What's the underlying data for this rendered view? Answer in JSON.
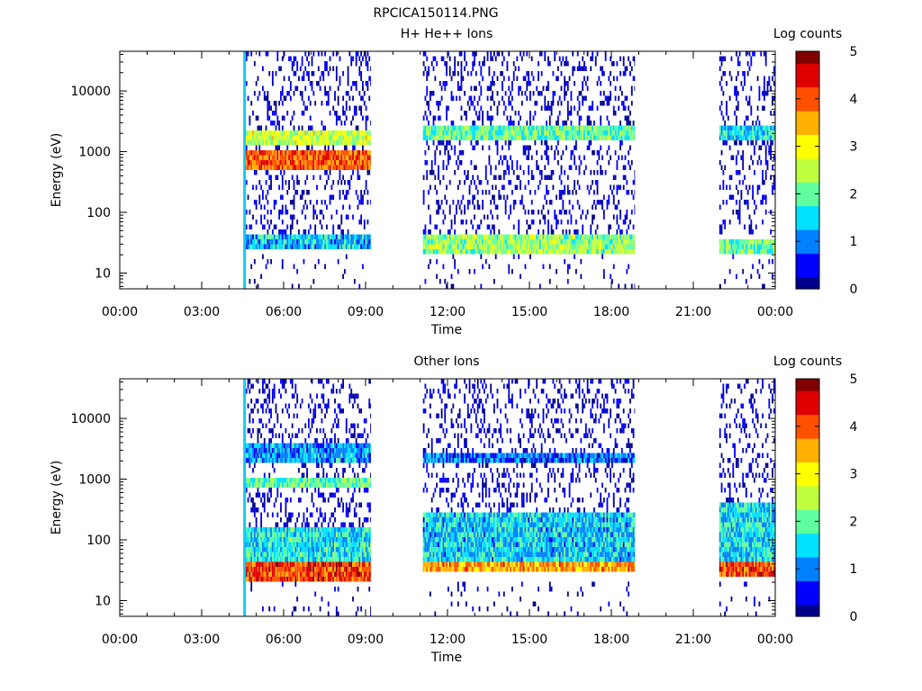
{
  "figure_title": "RPCICA150114.PNG",
  "colors": {
    "colormap": [
      "#00008c",
      "#0000ff",
      "#0080ff",
      "#00e0ff",
      "#60ff9f",
      "#c0ff40",
      "#ffff00",
      "#ffb000",
      "#ff5000",
      "#e00000",
      "#800000"
    ]
  },
  "chart_data": [
    {
      "type": "heatmap",
      "title": "H+ He++ Ions",
      "xlabel": "Time",
      "ylabel": "Energy (eV)",
      "y_scale": "log",
      "ylim": [
        5.5,
        45000
      ],
      "xlim_hours": [
        0,
        24
      ],
      "x_ticks": [
        {
          "hour": 0,
          "label": "00:00"
        },
        {
          "hour": 3,
          "label": "03:00"
        },
        {
          "hour": 6,
          "label": "06:00"
        },
        {
          "hour": 9,
          "label": "09:00"
        },
        {
          "hour": 12,
          "label": "12:00"
        },
        {
          "hour": 15,
          "label": "15:00"
        },
        {
          "hour": 18,
          "label": "18:00"
        },
        {
          "hour": 21,
          "label": "21:00"
        },
        {
          "hour": 24,
          "label": "00:00"
        }
      ],
      "y_ticks": [
        {
          "value": 10,
          "label": "10"
        },
        {
          "value": 100,
          "label": "100"
        },
        {
          "value": 1000,
          "label": "1000"
        },
        {
          "value": 10000,
          "label": "10000"
        }
      ],
      "colorbar": {
        "label": "Log counts",
        "range": [
          0,
          5
        ],
        "ticks": [
          "0",
          "1",
          "2",
          "3",
          "4",
          "5"
        ]
      },
      "data_intervals_hours": [
        [
          4.55,
          9.2
        ],
        [
          11.1,
          18.85
        ],
        [
          21.95,
          24.0
        ]
      ],
      "spike_hour": 4.57,
      "bands": [
        {
          "interval": 0,
          "energy_low": 500,
          "energy_high": 1100,
          "log_counts": 4.0
        },
        {
          "interval": 0,
          "energy_low": 1200,
          "energy_high": 2300,
          "log_counts": 2.6
        },
        {
          "interval": 0,
          "energy_low": 25,
          "energy_high": 40,
          "log_counts": 1.3
        },
        {
          "interval": 1,
          "energy_low": 1600,
          "energy_high": 2800,
          "log_counts": 2.0
        },
        {
          "interval": 1,
          "energy_low": 22,
          "energy_high": 40,
          "log_counts": 2.3
        },
        {
          "interval": 2,
          "energy_low": 1600,
          "energy_high": 2600,
          "log_counts": 1.5
        },
        {
          "interval": 2,
          "energy_low": 22,
          "energy_high": 38,
          "log_counts": 2.0
        }
      ]
    },
    {
      "type": "heatmap",
      "title": "Other Ions",
      "xlabel": "Time",
      "ylabel": "Energy (eV)",
      "y_scale": "log",
      "ylim": [
        5.5,
        45000
      ],
      "xlim_hours": [
        0,
        24
      ],
      "x_ticks": [
        {
          "hour": 0,
          "label": "00:00"
        },
        {
          "hour": 3,
          "label": "03:00"
        },
        {
          "hour": 6,
          "label": "06:00"
        },
        {
          "hour": 9,
          "label": "09:00"
        },
        {
          "hour": 12,
          "label": "12:00"
        },
        {
          "hour": 15,
          "label": "15:00"
        },
        {
          "hour": 18,
          "label": "18:00"
        },
        {
          "hour": 21,
          "label": "21:00"
        },
        {
          "hour": 24,
          "label": "00:00"
        }
      ],
      "y_ticks": [
        {
          "value": 10,
          "label": "10"
        },
        {
          "value": 100,
          "label": "100"
        },
        {
          "value": 1000,
          "label": "1000"
        },
        {
          "value": 10000,
          "label": "10000"
        }
      ],
      "colorbar": {
        "label": "Log counts",
        "range": [
          0,
          5
        ],
        "ticks": [
          "0",
          "1",
          "2",
          "3",
          "4",
          "5"
        ]
      },
      "data_intervals_hours": [
        [
          4.55,
          9.2
        ],
        [
          11.1,
          18.85
        ],
        [
          21.95,
          24.0
        ]
      ],
      "spike_hour": 4.57,
      "bands": [
        {
          "interval": 0,
          "energy_low": 22,
          "energy_high": 45,
          "log_counts": 4.2
        },
        {
          "interval": 0,
          "energy_low": 45,
          "energy_high": 160,
          "log_counts": 1.6
        },
        {
          "interval": 0,
          "energy_low": 700,
          "energy_high": 1000,
          "log_counts": 2.0
        },
        {
          "interval": 0,
          "energy_low": 2000,
          "energy_high": 4200,
          "log_counts": 1.2
        },
        {
          "interval": 1,
          "energy_low": 30,
          "energy_high": 45,
          "log_counts": 3.6
        },
        {
          "interval": 1,
          "energy_low": 45,
          "energy_high": 300,
          "log_counts": 1.4
        },
        {
          "interval": 1,
          "energy_low": 1800,
          "energy_high": 2600,
          "log_counts": 0.9
        },
        {
          "interval": 2,
          "energy_low": 25,
          "energy_high": 45,
          "log_counts": 4.1
        },
        {
          "interval": 2,
          "energy_low": 45,
          "energy_high": 400,
          "log_counts": 1.5
        }
      ]
    }
  ]
}
